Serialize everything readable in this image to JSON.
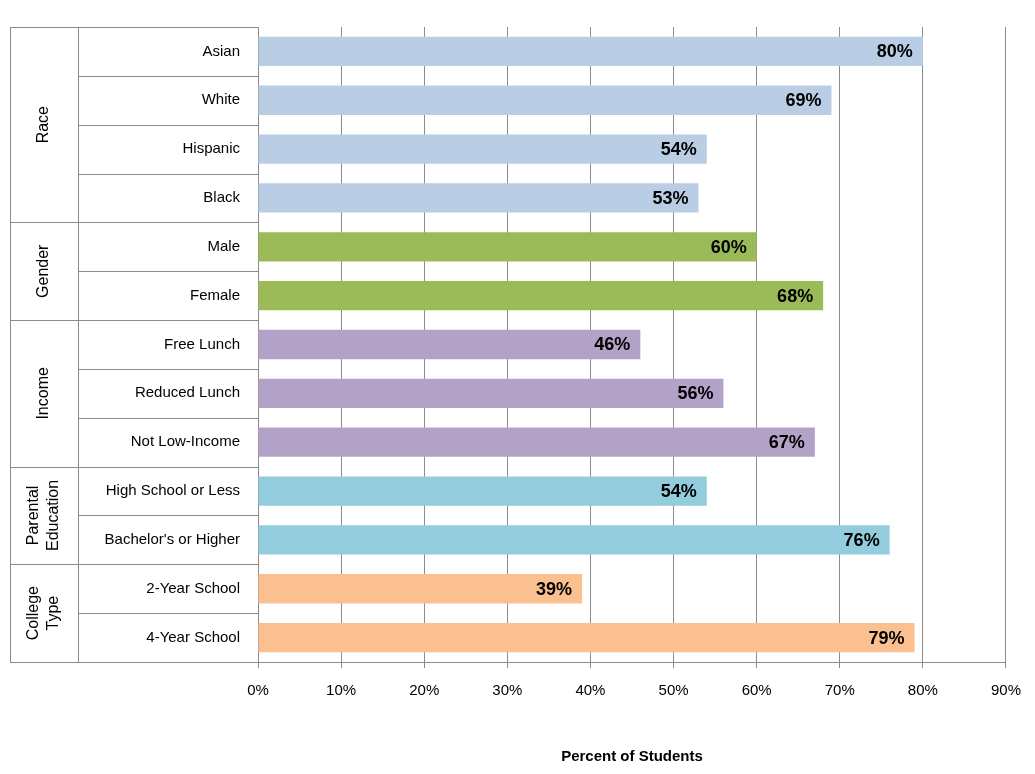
{
  "chart_data": {
    "type": "bar",
    "orientation": "horizontal",
    "xlabel": "Percent of Students",
    "categories": [
      "Asian",
      "White",
      "Hispanic",
      "Black",
      "Male",
      "Female",
      "Free Lunch",
      "Reduced Lunch",
      "Not Low-Income",
      "High School or Less",
      "Bachelor's or Higher",
      "2-Year School",
      "4-Year School"
    ],
    "values": [
      80,
      69,
      54,
      53,
      60,
      68,
      46,
      56,
      67,
      54,
      76,
      39,
      79
    ],
    "value_labels": [
      "80%",
      "69%",
      "54%",
      "53%",
      "60%",
      "68%",
      "46%",
      "56%",
      "67%",
      "54%",
      "76%",
      "39%",
      "79%"
    ],
    "colors": [
      "#b9cde5",
      "#b9cde5",
      "#b9cde5",
      "#b9cde5",
      "#9bbb59",
      "#9bbb59",
      "#b3a2c7",
      "#b3a2c7",
      "#b3a2c7",
      "#93cddd",
      "#93cddd",
      "#fac090",
      "#fac090"
    ],
    "xlim": [
      0,
      90
    ],
    "xticks": [
      {
        "value": 0,
        "label": "0%"
      },
      {
        "value": 10,
        "label": "10%"
      },
      {
        "value": 20,
        "label": "20%"
      },
      {
        "value": 30,
        "label": "30%"
      },
      {
        "value": 40,
        "label": "40%"
      },
      {
        "value": 50,
        "label": "50%"
      },
      {
        "value": 60,
        "label": "60%"
      },
      {
        "value": 70,
        "label": "70%"
      },
      {
        "value": 80,
        "label": "80%"
      },
      {
        "value": 90,
        "label": "90%"
      }
    ],
    "grid": "x",
    "legend": false,
    "annotations": [
      "Race",
      "Gender",
      "Income",
      "Parental Education",
      "College Type"
    ]
  }
}
